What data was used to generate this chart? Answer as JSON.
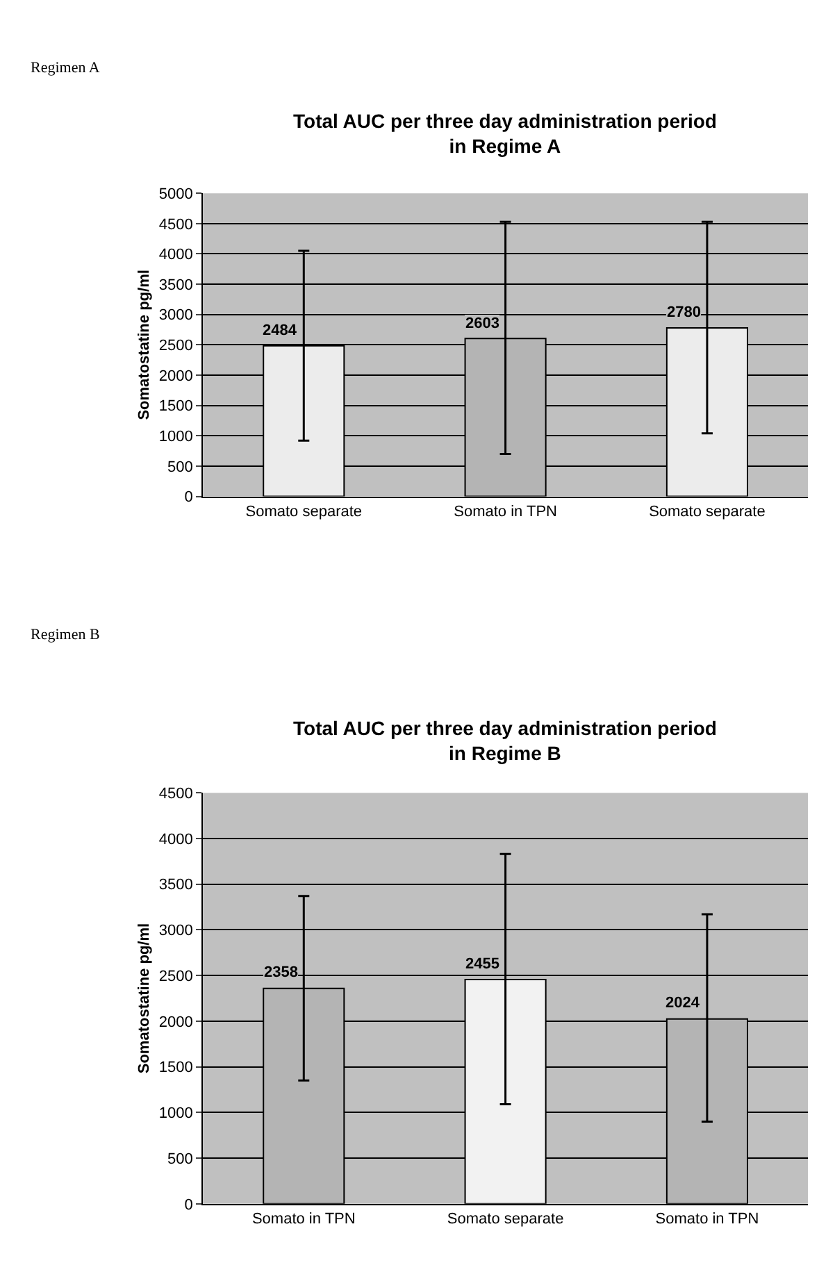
{
  "chart_data": [
    {
      "type": "bar",
      "title": "Total AUC per three day administration period\nin Regime A",
      "ylabel": "Somatostatine pg/ml",
      "annotations": [
        "Regimen A"
      ],
      "categories": [
        "Somato separate",
        "Somato in TPN",
        "Somato separate"
      ],
      "values": [
        2484,
        2603,
        2780
      ],
      "colors": [
        "#ececec",
        "#b4b4b4",
        "#ececec"
      ],
      "errors": [
        [
          920,
          4050
        ],
        [
          700,
          4530
        ],
        [
          1040,
          4530
        ]
      ],
      "ylim": [
        0,
        5000
      ],
      "yticks": [
        0,
        500,
        1000,
        1500,
        2000,
        2500,
        3000,
        3500,
        4000,
        4500,
        5000
      ],
      "grid": "y",
      "data_labels": true
    },
    {
      "type": "bar",
      "title": "Total AUC per three day administration period\nin Regime B",
      "ylabel": "Somatostatine pg/ml",
      "annotations": [
        "Regimen B"
      ],
      "categories": [
        "Somato in TPN",
        "Somato separate",
        "Somato in TPN"
      ],
      "values": [
        2358,
        2455,
        2024
      ],
      "colors": [
        "#b4b4b4",
        "#f2f2f2",
        "#b4b4b4"
      ],
      "errors": [
        [
          1350,
          3370
        ],
        [
          1090,
          3830
        ],
        [
          900,
          3170
        ]
      ],
      "ylim": [
        0,
        4500
      ],
      "yticks": [
        0,
        500,
        1000,
        1500,
        2000,
        2500,
        3000,
        3500,
        4000,
        4500
      ],
      "grid": "y",
      "data_labels": true
    }
  ]
}
